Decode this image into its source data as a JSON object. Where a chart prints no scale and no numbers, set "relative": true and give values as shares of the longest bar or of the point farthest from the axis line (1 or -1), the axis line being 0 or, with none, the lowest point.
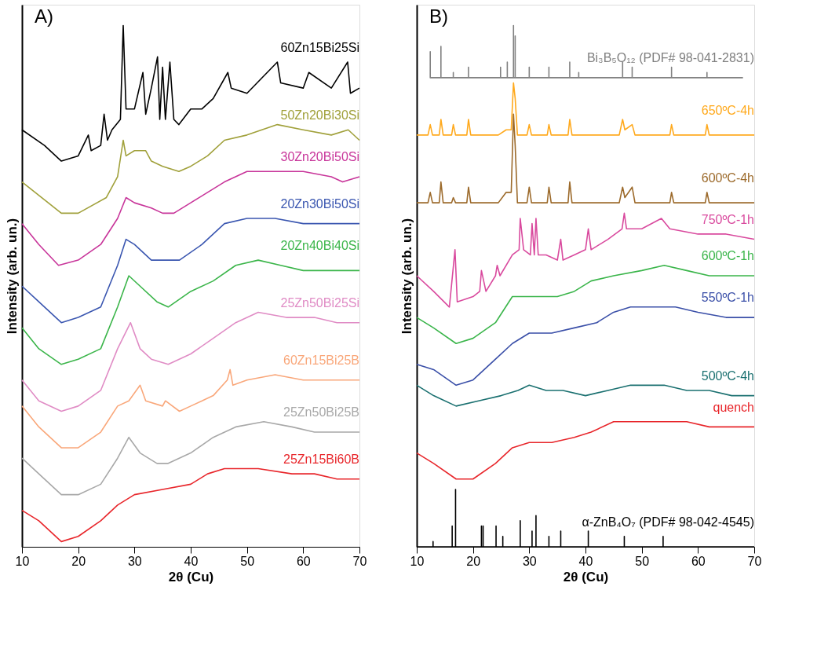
{
  "chart_data": [
    {
      "type": "line",
      "title": "A)",
      "xlabel": "2θ (Cu)",
      "ylabel": "Intensity (arb. un.)",
      "xlim": [
        10,
        70
      ],
      "xticks": [
        10,
        20,
        30,
        40,
        50,
        60,
        70
      ],
      "relative": true,
      "series": [
        {
          "name": "60Zn15Bi25Si",
          "color": "#000000",
          "x": [
            10,
            14,
            17,
            20,
            21.8,
            22.3,
            24,
            24.6,
            25.2,
            26,
            27.5,
            28,
            28.5,
            30,
            31.5,
            32,
            33,
            34.1,
            34.5,
            35,
            35.5,
            36.3,
            37,
            37.9,
            40,
            42,
            44,
            46.6,
            47.2,
            50,
            55.4,
            56,
            60,
            61,
            65,
            67.9,
            68.4,
            70
          ],
          "values": [
            0.8,
            0.77,
            0.74,
            0.75,
            0.79,
            0.76,
            0.77,
            0.83,
            0.78,
            0.8,
            0.82,
            1.0,
            0.84,
            0.84,
            0.91,
            0.83,
            0.88,
            0.94,
            0.82,
            0.92,
            0.82,
            0.93,
            0.82,
            0.81,
            0.84,
            0.84,
            0.86,
            0.91,
            0.88,
            0.87,
            0.93,
            0.89,
            0.88,
            0.91,
            0.88,
            0.93,
            0.87,
            0.88
          ]
        },
        {
          "name": "50Zn20Bi30Si",
          "color": "#a0a03a",
          "x": [
            10,
            17,
            20,
            25,
            27,
            28,
            28.5,
            30,
            32,
            33,
            35,
            37.9,
            40,
            43,
            46,
            50,
            55.4,
            60,
            65,
            68,
            70
          ],
          "values": [
            0.7,
            0.64,
            0.64,
            0.67,
            0.71,
            0.78,
            0.75,
            0.76,
            0.76,
            0.74,
            0.73,
            0.72,
            0.73,
            0.75,
            0.78,
            0.79,
            0.81,
            0.8,
            0.79,
            0.8,
            0.78
          ]
        },
        {
          "name": "30Zn20Bi50Si",
          "color": "#c8359a",
          "x": [
            10,
            13,
            16.5,
            20,
            24,
            27,
            28.5,
            30,
            33,
            35,
            37,
            40,
            43,
            46,
            50,
            55,
            60,
            65,
            67,
            70
          ],
          "values": [
            0.62,
            0.58,
            0.54,
            0.55,
            0.58,
            0.63,
            0.67,
            0.66,
            0.65,
            0.64,
            0.64,
            0.66,
            0.68,
            0.7,
            0.72,
            0.72,
            0.72,
            0.71,
            0.7,
            0.71
          ]
        },
        {
          "name": "20Zn30Bi50Si",
          "color": "#3a56b0",
          "x": [
            10,
            13,
            17,
            20,
            24,
            27,
            28.5,
            30,
            33,
            35,
            38,
            42,
            46,
            50,
            55,
            60,
            65,
            70
          ],
          "values": [
            0.5,
            0.47,
            0.43,
            0.44,
            0.46,
            0.54,
            0.59,
            0.58,
            0.55,
            0.55,
            0.55,
            0.58,
            0.62,
            0.63,
            0.63,
            0.62,
            0.62,
            0.62
          ]
        },
        {
          "name": "20Zn40Bi40Si",
          "color": "#3bb54a",
          "x": [
            10,
            13,
            17,
            20,
            24,
            27,
            29,
            31,
            34,
            36,
            40,
            44,
            48,
            52,
            56,
            60,
            65,
            70
          ],
          "values": [
            0.42,
            0.38,
            0.35,
            0.36,
            0.38,
            0.46,
            0.52,
            0.5,
            0.47,
            0.46,
            0.49,
            0.51,
            0.54,
            0.55,
            0.54,
            0.53,
            0.53,
            0.53
          ]
        },
        {
          "name": "25Zn50Bi25Si",
          "color": "#e08cc5",
          "x": [
            10,
            13,
            17,
            20,
            24,
            27,
            29.3,
            31,
            33,
            36,
            40,
            44,
            48,
            52,
            57,
            62,
            66,
            70
          ],
          "values": [
            0.32,
            0.28,
            0.26,
            0.27,
            0.3,
            0.38,
            0.43,
            0.38,
            0.36,
            0.35,
            0.37,
            0.4,
            0.43,
            0.45,
            0.44,
            0.44,
            0.43,
            0.43
          ]
        },
        {
          "name": "60Zn15Bi25B",
          "color": "#f9a77a",
          "x": [
            10,
            13,
            17,
            20,
            24,
            27,
            29,
            31,
            32,
            35,
            35.5,
            38,
            40,
            44,
            46.5,
            47,
            47.5,
            50,
            55,
            60,
            65,
            70
          ],
          "values": [
            0.27,
            0.23,
            0.19,
            0.19,
            0.22,
            0.27,
            0.28,
            0.31,
            0.28,
            0.27,
            0.28,
            0.26,
            0.27,
            0.29,
            0.32,
            0.34,
            0.31,
            0.32,
            0.33,
            0.32,
            0.32,
            0.32
          ]
        },
        {
          "name": "25Zn50Bi25B",
          "color": "#a8a8a8",
          "x": [
            10,
            13,
            17,
            20,
            24,
            27,
            29,
            31,
            34,
            36,
            40,
            44,
            48,
            53,
            58,
            62,
            66,
            70
          ],
          "values": [
            0.17,
            0.14,
            0.1,
            0.1,
            0.12,
            0.17,
            0.21,
            0.18,
            0.16,
            0.16,
            0.18,
            0.21,
            0.23,
            0.24,
            0.23,
            0.22,
            0.22,
            0.22
          ]
        },
        {
          "name": "25Zn15Bi60B",
          "color": "#e8262b",
          "x": [
            10,
            13,
            17,
            20,
            24,
            27,
            30,
            35,
            40,
            43,
            46,
            48,
            52,
            58,
            62,
            66,
            70
          ],
          "values": [
            0.07,
            0.05,
            0.01,
            0.02,
            0.05,
            0.08,
            0.1,
            0.11,
            0.12,
            0.14,
            0.15,
            0.15,
            0.15,
            0.14,
            0.14,
            0.13,
            0.13
          ]
        }
      ]
    },
    {
      "type": "line",
      "title": "B)",
      "xlabel": "2θ  (Cu)",
      "ylabel": "Intensity (arb. un.)",
      "xlim": [
        10,
        70
      ],
      "xticks": [
        10,
        20,
        30,
        40,
        50,
        60,
        70
      ],
      "relative": true,
      "series": [
        {
          "name": "Bi₃B₅O₁₂ (PDF# 98-041-2831)",
          "color": "#808080",
          "x": [
            12.4,
            12.4,
            12.4,
            14.3,
            14.3,
            14.3,
            16.5,
            16.5,
            16.5,
            19.2,
            19.2,
            19.2,
            24.9,
            24.9,
            24.9,
            26.1,
            26.1,
            26.1,
            27.2,
            27.2,
            27.2,
            27.5,
            27.5,
            27.5,
            30.0,
            30.0,
            30.0,
            33.5,
            33.5,
            33.5,
            37.2,
            37.2,
            37.2,
            38.8,
            38.8,
            38.8,
            46.6,
            46.6,
            46.6,
            48.3,
            48.3,
            48.3,
            55.3,
            55.3,
            55.3,
            61.6,
            61.6,
            61.6,
            68
          ],
          "values": [
            0.9,
            0.95,
            0.9,
            0.9,
            0.96,
            0.9,
            0.9,
            0.91,
            0.9,
            0.9,
            0.92,
            0.9,
            0.9,
            0.92,
            0.9,
            0.9,
            0.93,
            0.9,
            0.9,
            1.0,
            0.9,
            0.9,
            0.98,
            0.9,
            0.9,
            0.92,
            0.9,
            0.9,
            0.92,
            0.9,
            0.9,
            0.93,
            0.9,
            0.9,
            0.91,
            0.9,
            0.9,
            0.93,
            0.9,
            0.9,
            0.92,
            0.9,
            0.9,
            0.92,
            0.9,
            0.9,
            0.91,
            0.9,
            0.9
          ]
        },
        {
          "name": "650ºC-4h",
          "color": "#ffa91c",
          "x": [
            10,
            12.0,
            12.4,
            12.8,
            14.0,
            14.3,
            14.7,
            16.2,
            16.5,
            16.9,
            18.9,
            19.2,
            19.6,
            24.5,
            25.9,
            26.8,
            27.2,
            27.5,
            27.9,
            29.6,
            30.0,
            30.4,
            33.2,
            33.5,
            33.9,
            36.9,
            37.2,
            37.6,
            46.0,
            46.6,
            47.0,
            48.3,
            48.8,
            55.0,
            55.3,
            55.7,
            61.3,
            61.6,
            62.0,
            70
          ],
          "values": [
            0.79,
            0.79,
            0.81,
            0.79,
            0.79,
            0.82,
            0.79,
            0.79,
            0.81,
            0.79,
            0.79,
            0.82,
            0.79,
            0.79,
            0.8,
            0.8,
            0.89,
            0.86,
            0.79,
            0.79,
            0.81,
            0.79,
            0.79,
            0.81,
            0.79,
            0.79,
            0.82,
            0.79,
            0.79,
            0.82,
            0.8,
            0.81,
            0.79,
            0.79,
            0.81,
            0.79,
            0.79,
            0.81,
            0.79,
            0.79
          ]
        },
        {
          "name": "600ºC-4h",
          "color": "#9c6a2b",
          "x": [
            10,
            12.0,
            12.4,
            12.8,
            14.0,
            14.3,
            14.7,
            16.2,
            16.5,
            16.9,
            18.9,
            19.2,
            19.6,
            24.5,
            25.9,
            26.8,
            27.2,
            27.5,
            27.9,
            29.6,
            30.0,
            30.4,
            33.2,
            33.5,
            33.9,
            36.9,
            37.2,
            37.6,
            46.0,
            46.6,
            47.0,
            48.3,
            48.8,
            55.0,
            55.3,
            55.7,
            61.3,
            61.6,
            62.0,
            70
          ],
          "values": [
            0.66,
            0.66,
            0.68,
            0.66,
            0.66,
            0.7,
            0.66,
            0.66,
            0.67,
            0.66,
            0.66,
            0.69,
            0.66,
            0.66,
            0.68,
            0.68,
            0.83,
            0.77,
            0.66,
            0.66,
            0.69,
            0.66,
            0.66,
            0.69,
            0.66,
            0.66,
            0.7,
            0.66,
            0.66,
            0.69,
            0.67,
            0.69,
            0.66,
            0.66,
            0.68,
            0.66,
            0.66,
            0.68,
            0.66,
            0.66
          ]
        },
        {
          "name": "750ºC-1h",
          "color": "#d94a9e",
          "x": [
            10,
            13,
            15.8,
            16.8,
            17.2,
            20,
            21.2,
            21.5,
            22.3,
            24,
            24.3,
            24.8,
            27,
            28.2,
            28.4,
            29,
            30.2,
            30.5,
            30.9,
            31.2,
            31.6,
            33,
            35,
            35.6,
            36,
            38,
            40,
            40.5,
            41,
            44,
            46.5,
            46.9,
            47.3,
            50,
            53.5,
            55,
            60,
            65,
            70
          ],
          "values": [
            0.52,
            0.49,
            0.46,
            0.57,
            0.47,
            0.48,
            0.49,
            0.53,
            0.49,
            0.52,
            0.54,
            0.52,
            0.56,
            0.57,
            0.63,
            0.57,
            0.56,
            0.62,
            0.56,
            0.63,
            0.56,
            0.56,
            0.55,
            0.59,
            0.55,
            0.56,
            0.57,
            0.61,
            0.57,
            0.59,
            0.61,
            0.64,
            0.61,
            0.61,
            0.63,
            0.61,
            0.6,
            0.6,
            0.59
          ]
        },
        {
          "name": "600ºC-1h",
          "color": "#3ab54a",
          "x": [
            10,
            13,
            17,
            20,
            24,
            27,
            29,
            31,
            35,
            38,
            41,
            45,
            50,
            54,
            58,
            62,
            66,
            70
          ],
          "values": [
            0.44,
            0.42,
            0.39,
            0.4,
            0.43,
            0.48,
            0.48,
            0.48,
            0.48,
            0.49,
            0.51,
            0.52,
            0.53,
            0.54,
            0.53,
            0.52,
            0.52,
            0.52
          ]
        },
        {
          "name": "550ºC-1h",
          "color": "#3a4fa8",
          "x": [
            10,
            13,
            17,
            20,
            24,
            27,
            30,
            34,
            38,
            42,
            45,
            48,
            52,
            56,
            60,
            65,
            70
          ],
          "values": [
            0.35,
            0.34,
            0.31,
            0.32,
            0.36,
            0.39,
            0.41,
            0.41,
            0.42,
            0.43,
            0.45,
            0.46,
            0.46,
            0.46,
            0.45,
            0.44,
            0.44
          ]
        },
        {
          "name": "500ºC-4h",
          "color": "#1a7070",
          "x": [
            10,
            13,
            17,
            21,
            25,
            28,
            30,
            33,
            36,
            40,
            44,
            48,
            50,
            54,
            58,
            62,
            66,
            70
          ],
          "values": [
            0.31,
            0.29,
            0.27,
            0.28,
            0.29,
            0.3,
            0.31,
            0.3,
            0.3,
            0.29,
            0.3,
            0.31,
            0.31,
            0.31,
            0.3,
            0.3,
            0.29,
            0.29
          ]
        },
        {
          "name": "quench",
          "color": "#e8262b",
          "x": [
            10,
            13,
            17,
            20,
            24,
            27,
            30,
            34,
            38,
            41,
            45,
            48,
            52,
            58,
            62,
            66,
            70
          ],
          "values": [
            0.18,
            0.16,
            0.13,
            0.13,
            0.16,
            0.19,
            0.2,
            0.2,
            0.21,
            0.22,
            0.24,
            0.24,
            0.24,
            0.24,
            0.23,
            0.23,
            0.23
          ]
        },
        {
          "name": "α-ZnB₄O₇ (PDF# 98-042-4545)",
          "color": "#000000",
          "x": [
            10,
            12.9,
            12.9,
            12.9,
            16.3,
            16.3,
            16.3,
            16.9,
            16.9,
            16.9,
            21.5,
            21.5,
            21.5,
            21.8,
            21.8,
            21.8,
            24.1,
            24.1,
            24.1,
            25.3,
            25.3,
            25.3,
            28.4,
            28.4,
            28.4,
            30.5,
            30.5,
            30.5,
            31.2,
            31.2,
            31.2,
            33.5,
            33.5,
            33.5,
            35.6,
            35.6,
            35.6,
            40.5,
            40.5,
            40.5,
            46.9,
            46.9,
            46.9,
            53.8,
            53.8,
            53.8,
            70
          ],
          "values": [
            0,
            0,
            0.01,
            0,
            0,
            0.04,
            0,
            0,
            0.11,
            0,
            0,
            0.04,
            0,
            0,
            0.04,
            0,
            0,
            0.04,
            0,
            0,
            0.02,
            0,
            0,
            0.05,
            0,
            0,
            0.03,
            0,
            0,
            0.06,
            0,
            0,
            0.02,
            0,
            0,
            0.03,
            0,
            0,
            0.03,
            0,
            0,
            0.02,
            0,
            0,
            0.02,
            0,
            0
          ]
        }
      ]
    }
  ]
}
